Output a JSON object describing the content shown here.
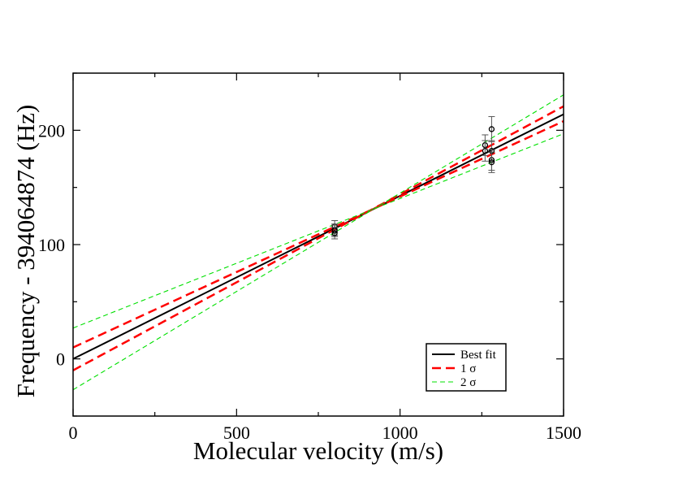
{
  "chart_data": {
    "type": "line",
    "title": "",
    "xlabel": "Molecular velocity (m/s)",
    "ylabel": "Frequency - 394064874 (Hz)",
    "xlim": [
      0,
      1500
    ],
    "ylim": [
      -50,
      250
    ],
    "x_ticks": [
      0,
      500,
      1000,
      1500
    ],
    "x_tick_labels": [
      "0",
      "500",
      "1000",
      "1500"
    ],
    "y_ticks": [
      0,
      100,
      200
    ],
    "y_tick_labels": [
      "0",
      "100",
      "200"
    ],
    "grid": false,
    "legend_position": "bottom-right",
    "series": [
      {
        "name": "Best fit",
        "style": "solid",
        "color": "#000000",
        "x": [
          0,
          1500
        ],
        "y": [
          0,
          214
        ]
      },
      {
        "name": "1 σ",
        "style": "dashed",
        "color": "#ff0000",
        "bands": [
          {
            "x": [
              0,
              1500
            ],
            "y": [
              10,
              208
            ]
          },
          {
            "x": [
              0,
              1500
            ],
            "y": [
              -10,
              221
            ]
          }
        ]
      },
      {
        "name": "2 σ",
        "style": "dashed",
        "color": "#00e000",
        "bands": [
          {
            "x": [
              0,
              1500
            ],
            "y": [
              27,
              197
            ]
          },
          {
            "x": [
              0,
              1500
            ],
            "y": [
              -27,
              231
            ]
          }
        ]
      }
    ],
    "points": [
      {
        "x": 800,
        "y": 116,
        "err": 5
      },
      {
        "x": 800,
        "y": 113,
        "err": 5
      },
      {
        "x": 800,
        "y": 112,
        "err": 5
      },
      {
        "x": 800,
        "y": 110,
        "err": 5
      },
      {
        "x": 1260,
        "y": 187,
        "err": 9
      },
      {
        "x": 1260,
        "y": 182,
        "err": 9
      },
      {
        "x": 1280,
        "y": 201,
        "err": 11
      },
      {
        "x": 1280,
        "y": 182,
        "err": 9
      },
      {
        "x": 1280,
        "y": 174,
        "err": 9
      },
      {
        "x": 1280,
        "y": 172,
        "err": 9
      }
    ],
    "legend": [
      "Best fit",
      "1 σ",
      "2 σ"
    ]
  }
}
